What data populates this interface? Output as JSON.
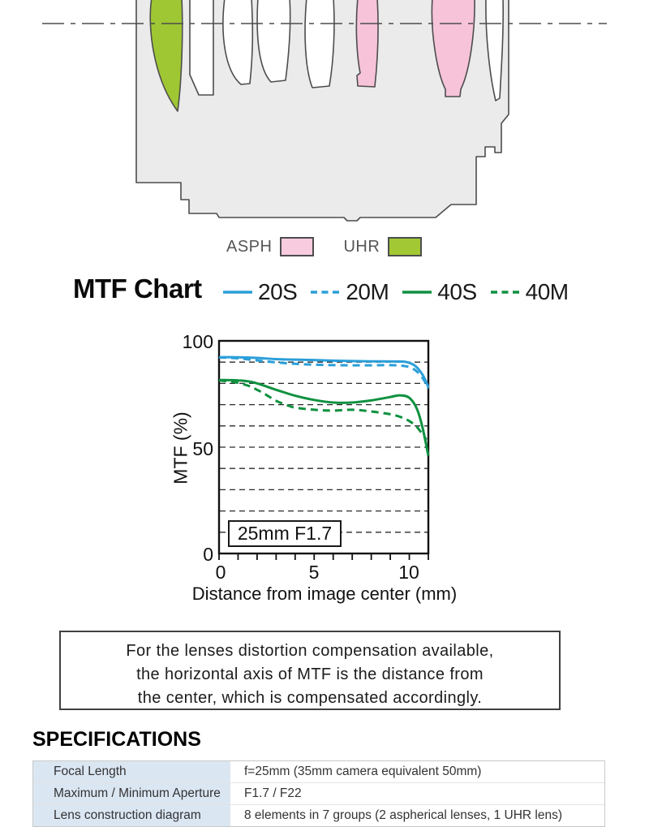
{
  "chart_data": {
    "type": "line",
    "title": "MTF Chart",
    "xlabel": "Distance from image center (mm)",
    "ylabel": "MTF (%)",
    "xlim": [
      0,
      11
    ],
    "ylim": [
      0,
      100
    ],
    "x_ticks": [
      {
        "value": 0,
        "label": "0"
      },
      {
        "value": 5,
        "label": "5"
      },
      {
        "value": 10,
        "label": "10"
      }
    ],
    "y_ticks": [
      {
        "value": 0,
        "label": "0"
      },
      {
        "value": 50,
        "label": "50"
      },
      {
        "value": 100,
        "label": "100"
      }
    ],
    "grid_y": [
      10,
      20,
      30,
      40,
      50,
      60,
      70,
      80,
      90
    ],
    "x_minor_tick_step": 1,
    "grid": true,
    "legend_position": "top",
    "annotation": "25mm F1.7",
    "series": [
      {
        "name": "20S",
        "color": "#2b9fd9",
        "dashed": false,
        "points": [
          [
            0,
            92.3
          ],
          [
            1,
            92.3
          ],
          [
            2,
            92.0
          ],
          [
            3,
            91.4
          ],
          [
            4,
            91.2
          ],
          [
            5,
            91.0
          ],
          [
            6,
            90.7
          ],
          [
            7,
            90.5
          ],
          [
            8,
            90.4
          ],
          [
            9,
            90.3
          ],
          [
            9.8,
            90.1
          ],
          [
            10.3,
            88.3
          ],
          [
            10.7,
            84.0
          ],
          [
            11,
            78.3
          ]
        ]
      },
      {
        "name": "20M",
        "color": "#2b9fd9",
        "dashed": true,
        "points": [
          [
            0,
            92.2
          ],
          [
            1,
            91.8
          ],
          [
            2,
            90.8
          ],
          [
            3,
            89.9
          ],
          [
            4,
            89.2
          ],
          [
            5,
            88.8
          ],
          [
            6,
            88.6
          ],
          [
            7,
            88.5
          ],
          [
            8,
            88.5
          ],
          [
            9,
            88.6
          ],
          [
            9.8,
            88.1
          ],
          [
            10.3,
            86.3
          ],
          [
            10.7,
            82.5
          ],
          [
            11,
            77.6
          ]
        ]
      },
      {
        "name": "40S",
        "color": "#0f9140",
        "dashed": false,
        "points": [
          [
            0,
            81.6
          ],
          [
            1,
            81.4
          ],
          [
            1.8,
            80.5
          ],
          [
            3,
            77.0
          ],
          [
            4,
            74.2
          ],
          [
            5,
            72.2
          ],
          [
            6,
            71.0
          ],
          [
            7,
            71.0
          ],
          [
            8,
            72.0
          ],
          [
            9,
            73.6
          ],
          [
            9.5,
            74.4
          ],
          [
            10,
            73.2
          ],
          [
            10.4,
            68.0
          ],
          [
            10.7,
            59.0
          ],
          [
            11,
            46.0
          ]
        ]
      },
      {
        "name": "40M",
        "color": "#0f9140",
        "dashed": true,
        "points": [
          [
            0,
            81.4
          ],
          [
            0.8,
            80.6
          ],
          [
            1.5,
            79.0
          ],
          [
            2,
            77.0
          ],
          [
            2.5,
            74.5
          ],
          [
            3,
            71.8
          ],
          [
            3.5,
            70.0
          ],
          [
            4,
            68.6
          ],
          [
            5,
            67.6
          ],
          [
            6,
            67.2
          ],
          [
            7,
            67.6
          ],
          [
            8,
            66.8
          ],
          [
            9,
            65.5
          ],
          [
            9.6,
            64.0
          ],
          [
            10,
            62.3
          ],
          [
            10.4,
            59.5
          ],
          [
            10.9,
            53.5
          ]
        ]
      }
    ]
  },
  "lens_diagram": {
    "legend": [
      {
        "label": "ASPH",
        "color": "#f8cbdf"
      },
      {
        "label": "UHR",
        "color": "#a2c933"
      }
    ],
    "colors": {
      "body": "#ebebeb",
      "outline": "#4d4d4d",
      "asph": "#f6c3d9",
      "uhr": "#9fc733",
      "element": "#ffffff"
    }
  },
  "mtf_header": {
    "title": "MTF Chart",
    "legend": [
      {
        "label": "20S",
        "color": "#2b9fd9",
        "dashed": false
      },
      {
        "label": "20M",
        "color": "#2b9fd9",
        "dashed": true
      },
      {
        "label": "40S",
        "color": "#0f9140",
        "dashed": false
      },
      {
        "label": "40M",
        "color": "#0f9140",
        "dashed": true
      }
    ]
  },
  "note": {
    "lines": [
      "For the lenses distortion compensation available,",
      "the horizontal axis of MTF is the distance from",
      "the center, which is compensated accordingly."
    ]
  },
  "specifications": {
    "title": "SPECIFICATIONS",
    "rows": [
      {
        "label": "Focal Length",
        "value": "f=25mm (35mm camera equivalent 50mm)"
      },
      {
        "label": "Maximum / Minimum Aperture",
        "value": "F1.7 / F22"
      },
      {
        "label": "Lens construction diagram",
        "value": "8 elements in 7 groups (2 aspherical lenses, 1 UHR lens)"
      }
    ]
  }
}
